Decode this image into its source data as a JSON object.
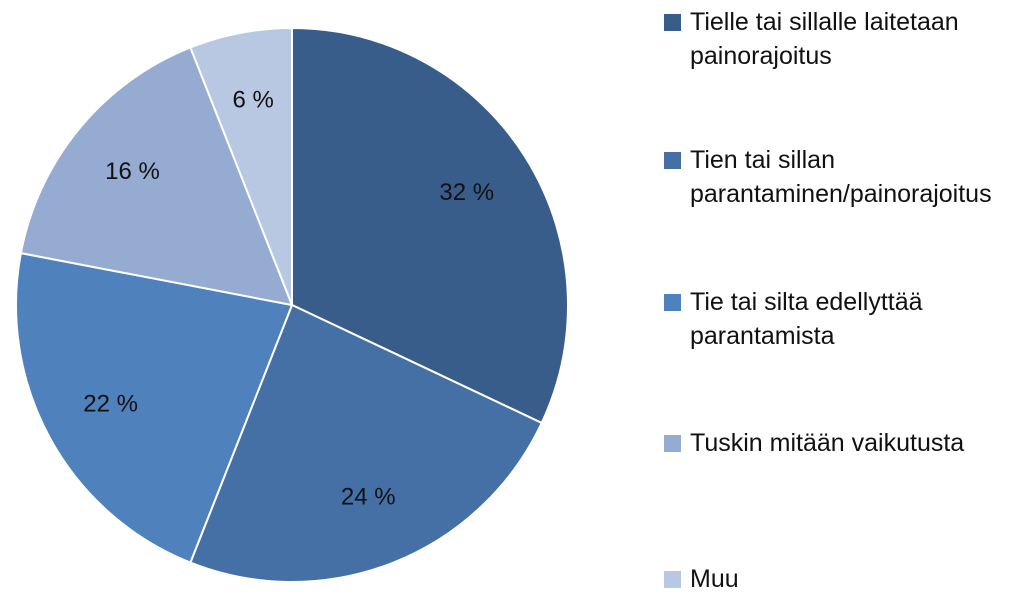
{
  "chart_data": {
    "type": "pie",
    "categories": [
      "Tielle tai sillalle laitetaan painorajoitus",
      "Tien tai sillan parantaminen/painorajoitus",
      "Tie tai silta edellyttää parantamista",
      "Tuskin mitään vaikutusta",
      "Muu"
    ],
    "values": [
      32,
      24,
      22,
      16,
      6
    ],
    "value_labels": [
      "32 %",
      "24 %",
      "22 %",
      "16 %",
      "6 %"
    ],
    "colors": [
      "#385d8a",
      "#4470a6",
      "#4f81bd",
      "#95abd2",
      "#b9c8e2"
    ],
    "legend": "right"
  }
}
